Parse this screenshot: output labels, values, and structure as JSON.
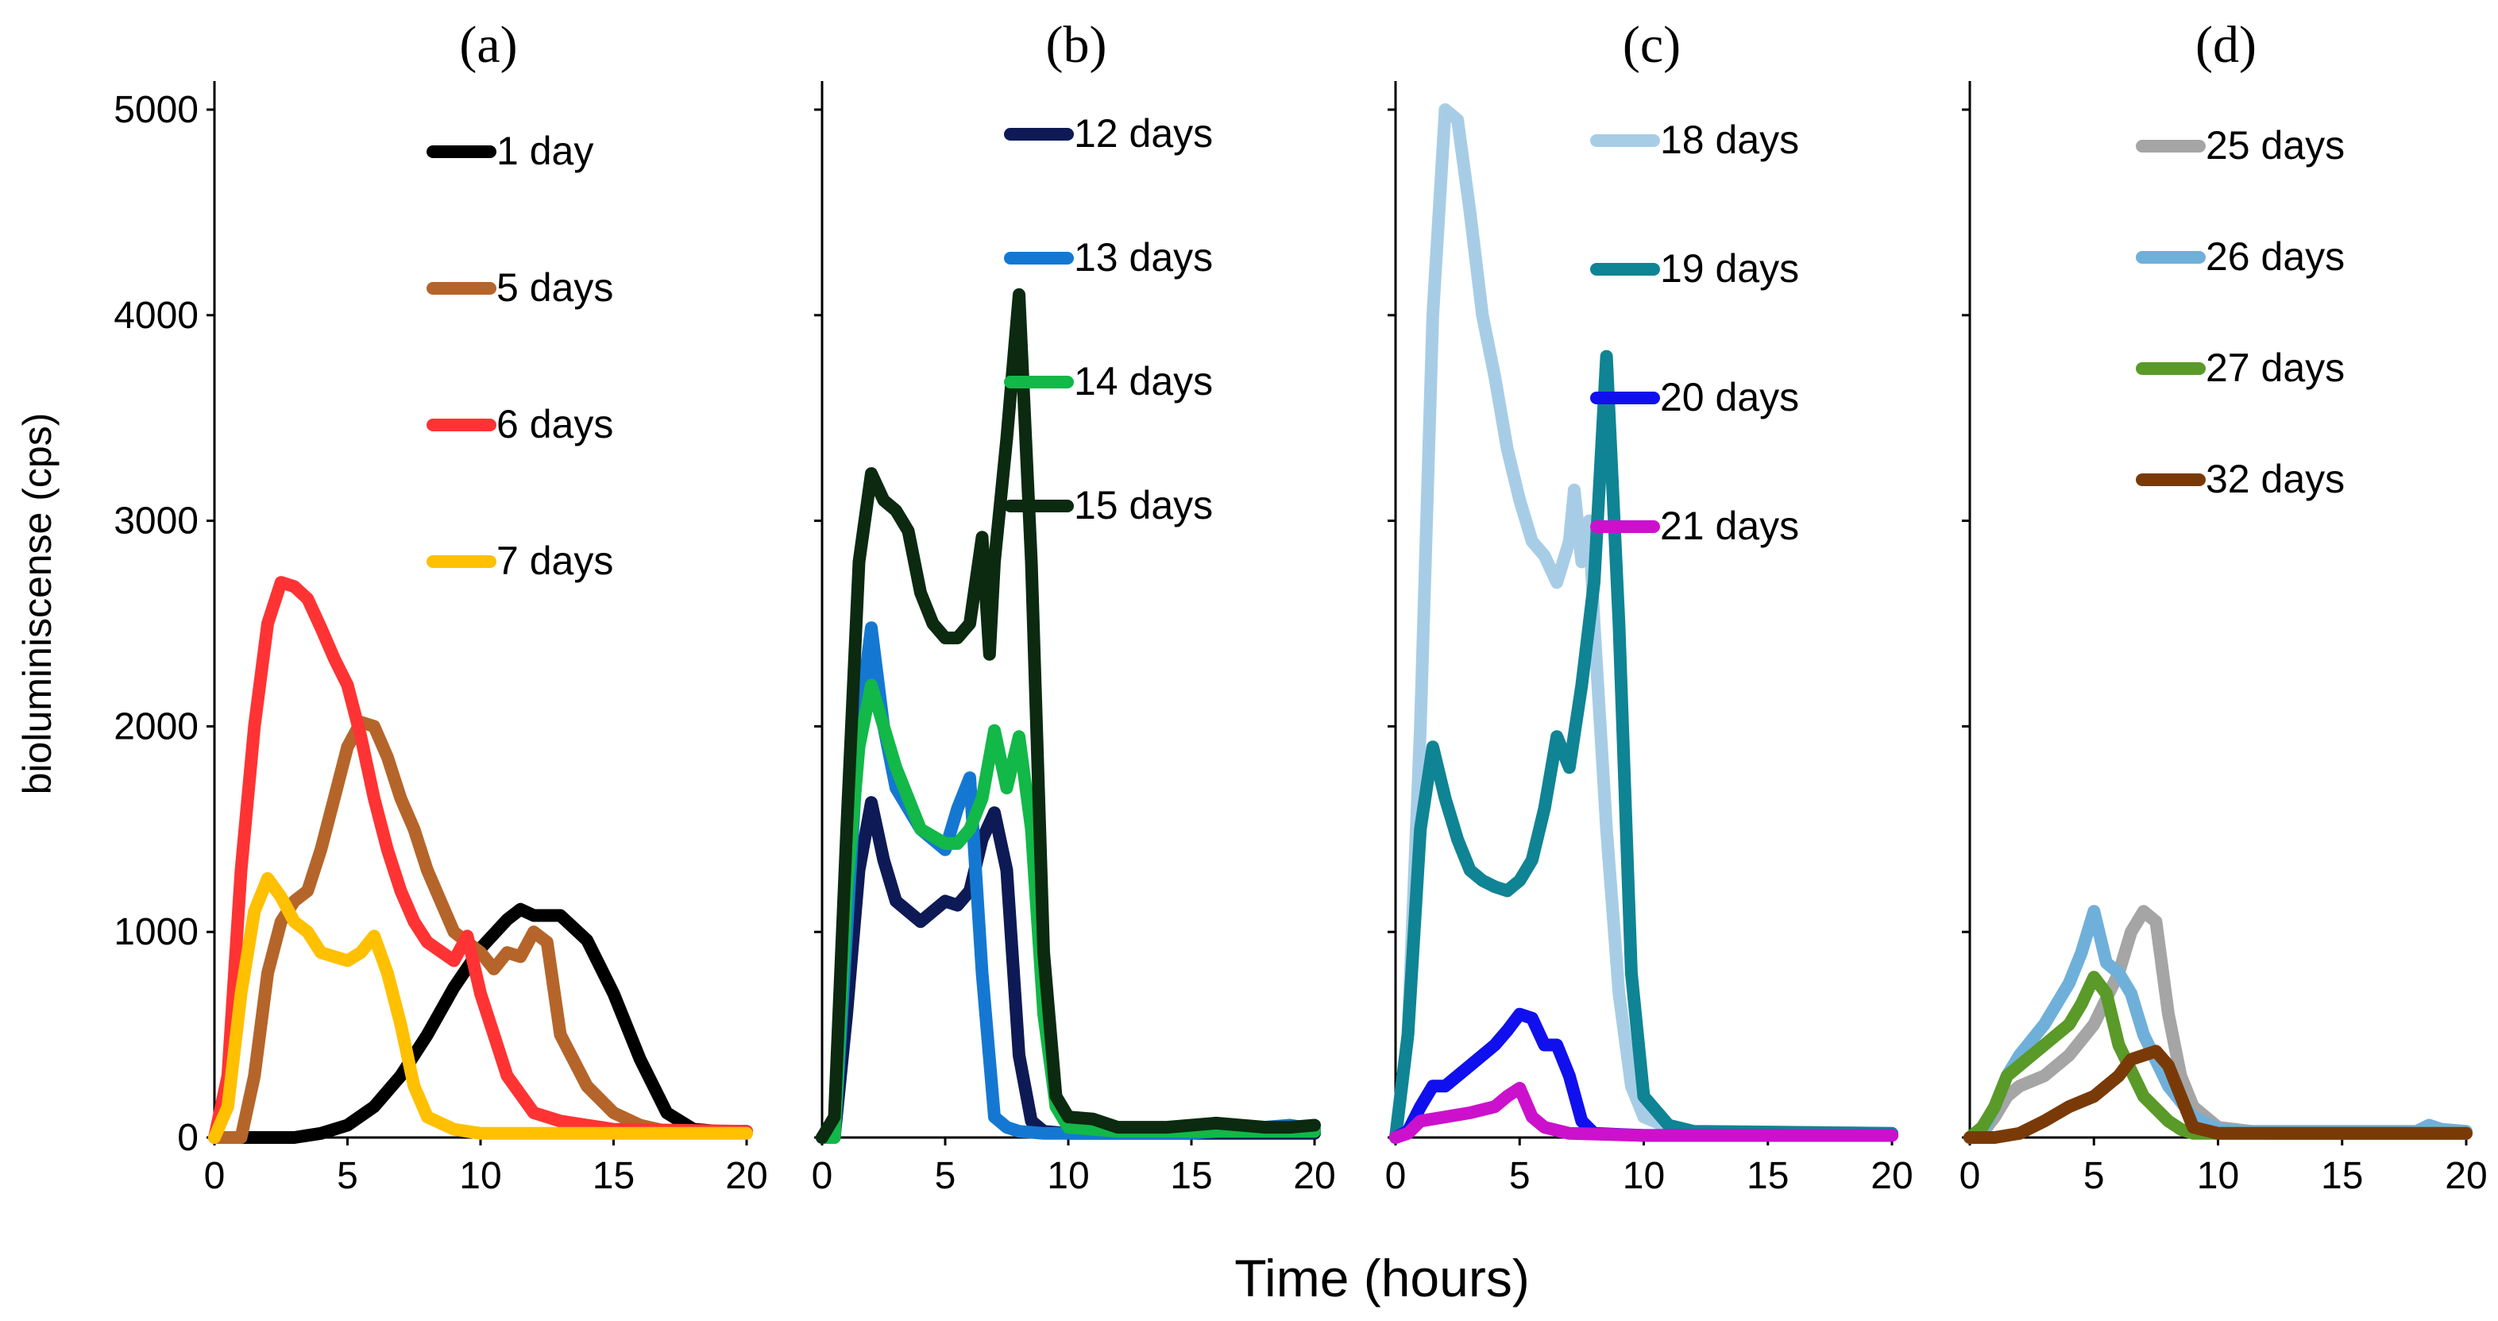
{
  "xlabel": "Time (hours)",
  "ylabel": "bioluminiscense (cps)",
  "colors": {
    "1 day": "#000000",
    "5 days": "#b5652a",
    "6 days": "#ff3333",
    "7 days": "#ffc000",
    "12 days": "#0d1a55",
    "13 days": "#1478d2",
    "14 days": "#12b848",
    "15 days": "#0b2a10",
    "18 days": "#a7cde6",
    "19 days": "#0f8494",
    "20 days": "#1010ee",
    "21 days": "#cc11cc",
    "25 days": "#a5a5a5",
    "26 days": "#6fb0da",
    "27 days": "#5a9a28",
    "32 days": "#7a3a08"
  },
  "chart_data": [
    {
      "type": "line",
      "title": "(a)",
      "xlim": [
        0,
        20
      ],
      "ylim": [
        0,
        5000
      ],
      "xticks": [
        0,
        5,
        10,
        15,
        20
      ],
      "yticks": [
        0,
        1000,
        2000,
        3000,
        4000,
        5000
      ],
      "series": [
        {
          "name": "1 day",
          "x": [
            0,
            2,
            3,
            4,
            5,
            6,
            7,
            8,
            9,
            10,
            11,
            11.5,
            12,
            13,
            14,
            15,
            16,
            17,
            18,
            19,
            20
          ],
          "values": [
            0,
            0,
            0,
            20,
            60,
            150,
            300,
            500,
            730,
            920,
            1060,
            1110,
            1080,
            1080,
            960,
            700,
            380,
            120,
            40,
            30,
            30
          ]
        },
        {
          "name": "5 days",
          "x": [
            0,
            1,
            1.5,
            2,
            2.5,
            3,
            3.5,
            4,
            4.5,
            5,
            5.5,
            6,
            6.5,
            7,
            7.5,
            8,
            9,
            10,
            10.5,
            11,
            11.5,
            12,
            12.5,
            13,
            14,
            15,
            16,
            17,
            18,
            20
          ],
          "values": [
            0,
            0,
            300,
            800,
            1050,
            1150,
            1200,
            1400,
            1650,
            1900,
            2020,
            2000,
            1850,
            1650,
            1500,
            1300,
            1000,
            900,
            820,
            900,
            880,
            1000,
            950,
            500,
            250,
            120,
            60,
            30,
            30,
            30
          ]
        },
        {
          "name": "6 days",
          "x": [
            0,
            0.5,
            1,
            1.5,
            2,
            2.5,
            3,
            3.5,
            4,
            4.5,
            5,
            5.5,
            6,
            6.5,
            7,
            7.5,
            8,
            9,
            9.5,
            10,
            10.5,
            11,
            12,
            13,
            14,
            15,
            20
          ],
          "values": [
            0,
            300,
            1300,
            2000,
            2500,
            2700,
            2680,
            2620,
            2480,
            2330,
            2200,
            1950,
            1650,
            1400,
            1200,
            1050,
            950,
            860,
            980,
            700,
            500,
            300,
            120,
            80,
            60,
            40,
            30
          ]
        },
        {
          "name": "7 days",
          "x": [
            0,
            0.5,
            1,
            1.5,
            2,
            2.5,
            3,
            3.5,
            4,
            4.5,
            5,
            5.5,
            6,
            6.5,
            7,
            7.5,
            8,
            9,
            10,
            15,
            20
          ],
          "values": [
            0,
            150,
            700,
            1100,
            1260,
            1170,
            1050,
            1000,
            900,
            880,
            860,
            900,
            980,
            800,
            550,
            250,
            100,
            40,
            20,
            20,
            20
          ]
        }
      ]
    },
    {
      "type": "line",
      "title": "(b)",
      "xlim": [
        0,
        20
      ],
      "ylim": [
        0,
        5000
      ],
      "xticks": [
        0,
        5,
        10,
        15,
        20
      ],
      "yticks": [
        0,
        1000,
        2000,
        3000,
        4000,
        5000
      ],
      "series": [
        {
          "name": "12 days",
          "x": [
            0,
            0.5,
            1,
            1.5,
            2,
            2.5,
            3,
            3.5,
            4,
            4.5,
            5,
            5.5,
            6,
            6.5,
            7,
            7.5,
            8,
            8.5,
            9,
            10,
            20
          ],
          "values": [
            0,
            0,
            600,
            1300,
            1630,
            1350,
            1150,
            1100,
            1050,
            1100,
            1150,
            1130,
            1200,
            1450,
            1580,
            1300,
            400,
            80,
            30,
            20,
            20
          ]
        },
        {
          "name": "13 days",
          "x": [
            0,
            0.5,
            1,
            1.5,
            2,
            2.5,
            3,
            4,
            5,
            5.5,
            6,
            6.5,
            7,
            7.5,
            8,
            9,
            10,
            15,
            19,
            20
          ],
          "values": [
            0,
            0,
            1000,
            2000,
            2480,
            2000,
            1700,
            1500,
            1400,
            1600,
            1750,
            800,
            100,
            50,
            30,
            20,
            20,
            20,
            60,
            40
          ]
        },
        {
          "name": "14 days",
          "x": [
            0,
            0.5,
            1,
            1.5,
            2,
            2.5,
            3,
            3.5,
            4,
            5,
            5.5,
            6,
            6.5,
            7,
            7.5,
            8,
            8.5,
            9,
            9.5,
            10,
            12,
            15,
            20
          ],
          "values": [
            0,
            0,
            1200,
            1900,
            2200,
            2000,
            1800,
            1650,
            1500,
            1430,
            1430,
            1500,
            1650,
            1980,
            1700,
            1950,
            1500,
            600,
            150,
            50,
            30,
            30,
            30
          ]
        },
        {
          "name": "15 days",
          "x": [
            0,
            0.5,
            1,
            1.5,
            2,
            2.5,
            3,
            3.5,
            4,
            4.5,
            5,
            5.5,
            6,
            6.5,
            6.8,
            7,
            7.5,
            8,
            8.5,
            9,
            9.5,
            10,
            11,
            12,
            13,
            14,
            15,
            16,
            17,
            18,
            19,
            20
          ],
          "values": [
            0,
            100,
            1500,
            2800,
            3230,
            3100,
            3050,
            2950,
            2650,
            2500,
            2430,
            2430,
            2500,
            2920,
            2350,
            2800,
            3400,
            4100,
            2800,
            900,
            200,
            100,
            90,
            50,
            50,
            50,
            60,
            70,
            60,
            50,
            50,
            60
          ]
        }
      ]
    },
    {
      "type": "line",
      "title": "(c)",
      "xlim": [
        0,
        20
      ],
      "ylim": [
        0,
        5000
      ],
      "xticks": [
        0,
        5,
        10,
        15,
        20
      ],
      "yticks": [
        0,
        1000,
        2000,
        3000,
        4000,
        5000
      ],
      "series": [
        {
          "name": "18 days",
          "x": [
            0,
            0.5,
            1,
            1.5,
            2,
            2.5,
            3,
            3.5,
            4,
            4.5,
            5,
            5.5,
            6,
            6.5,
            7,
            7.2,
            7.5,
            7.8,
            8,
            8.5,
            9,
            9.5,
            10,
            11,
            12,
            20
          ],
          "values": [
            0,
            500,
            2000,
            4000,
            5000,
            4950,
            4500,
            4000,
            3700,
            3350,
            3100,
            2900,
            2830,
            2700,
            2900,
            3150,
            2800,
            3000,
            2500,
            1500,
            700,
            250,
            100,
            50,
            30,
            20
          ]
        },
        {
          "name": "19 days",
          "x": [
            0,
            0.5,
            1,
            1.5,
            2,
            2.5,
            3,
            3.5,
            4,
            4.5,
            5,
            5.5,
            6,
            6.5,
            7,
            7.5,
            8,
            8.5,
            9,
            9.5,
            10,
            11,
            12,
            20
          ],
          "values": [
            0,
            500,
            1500,
            1900,
            1650,
            1450,
            1300,
            1250,
            1220,
            1200,
            1250,
            1350,
            1600,
            1950,
            1800,
            2200,
            2700,
            3800,
            2500,
            800,
            200,
            60,
            30,
            20
          ]
        },
        {
          "name": "20 days",
          "x": [
            0,
            0.5,
            1,
            1.5,
            2,
            3,
            4,
            4.5,
            5,
            5.5,
            6,
            6.5,
            7,
            7.5,
            8,
            10,
            20
          ],
          "values": [
            0,
            30,
            150,
            250,
            250,
            350,
            450,
            520,
            600,
            580,
            450,
            450,
            300,
            80,
            20,
            10,
            10
          ]
        },
        {
          "name": "21 days",
          "x": [
            0,
            0.5,
            1,
            2,
            3,
            4,
            4.5,
            5,
            5.5,
            6,
            7,
            10,
            20
          ],
          "values": [
            0,
            20,
            80,
            100,
            120,
            150,
            200,
            240,
            100,
            50,
            20,
            10,
            10
          ]
        }
      ]
    },
    {
      "type": "line",
      "title": "(d)",
      "xlim": [
        0,
        20
      ],
      "ylim": [
        0,
        5000
      ],
      "xticks": [
        0,
        5,
        10,
        15,
        20
      ],
      "yticks": [
        0,
        1000,
        2000,
        3000,
        4000,
        5000
      ],
      "series": [
        {
          "name": "25 days",
          "x": [
            0,
            0.5,
            1,
            1.5,
            2,
            3,
            4,
            5,
            6,
            6.5,
            7,
            7.5,
            8,
            8.5,
            9,
            10,
            12,
            20
          ],
          "values": [
            0,
            20,
            100,
            200,
            250,
            300,
            400,
            550,
            800,
            1000,
            1100,
            1050,
            600,
            300,
            150,
            50,
            20,
            20
          ]
        },
        {
          "name": "26 days",
          "x": [
            0,
            0.5,
            1,
            1.5,
            2,
            3,
            4,
            4.5,
            5,
            5.5,
            6,
            6.5,
            7,
            8,
            9,
            10,
            11,
            15,
            18,
            18.5,
            19,
            20
          ],
          "values": [
            0,
            20,
            150,
            300,
            400,
            550,
            750,
            900,
            1100,
            850,
            800,
            700,
            500,
            250,
            100,
            40,
            30,
            30,
            30,
            60,
            40,
            30
          ]
        },
        {
          "name": "27 days",
          "x": [
            0,
            0.5,
            1,
            1.5,
            2,
            3,
            4,
            4.5,
            5,
            5.5,
            6,
            7,
            8,
            8.5,
            9,
            10,
            20
          ],
          "values": [
            0,
            50,
            150,
            300,
            350,
            450,
            550,
            650,
            780,
            700,
            450,
            200,
            80,
            40,
            20,
            20,
            20
          ]
        },
        {
          "name": "32 days",
          "x": [
            0,
            1,
            2,
            3,
            4,
            5,
            6,
            6.5,
            7,
            7.5,
            8,
            8.5,
            9,
            10,
            20
          ],
          "values": [
            0,
            0,
            20,
            80,
            150,
            200,
            300,
            380,
            400,
            420,
            350,
            200,
            50,
            20,
            20
          ]
        }
      ]
    }
  ]
}
